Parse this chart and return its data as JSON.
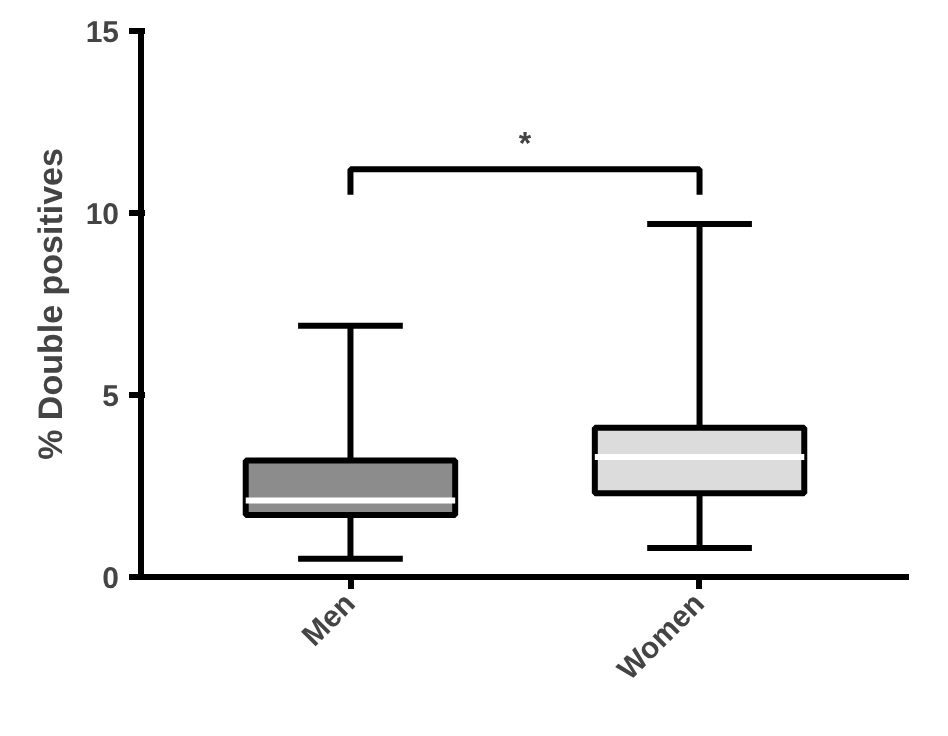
{
  "chart_data": {
    "type": "box",
    "ylabel": "% Double positives",
    "categories": [
      "Men",
      "Women"
    ],
    "boxes": [
      {
        "low": 0.5,
        "q1": 1.7,
        "median": 2.1,
        "q3": 3.2,
        "high": 6.9
      },
      {
        "low": 0.8,
        "q1": 2.3,
        "median": 3.3,
        "q3": 4.1,
        "high": 9.7
      }
    ],
    "colors": [
      "#8c8c8c",
      "#dcdcdc"
    ],
    "ylim": [
      0,
      15
    ],
    "yticks": [
      0,
      5,
      10,
      15
    ],
    "annotations": [
      "*"
    ],
    "grid": false
  }
}
